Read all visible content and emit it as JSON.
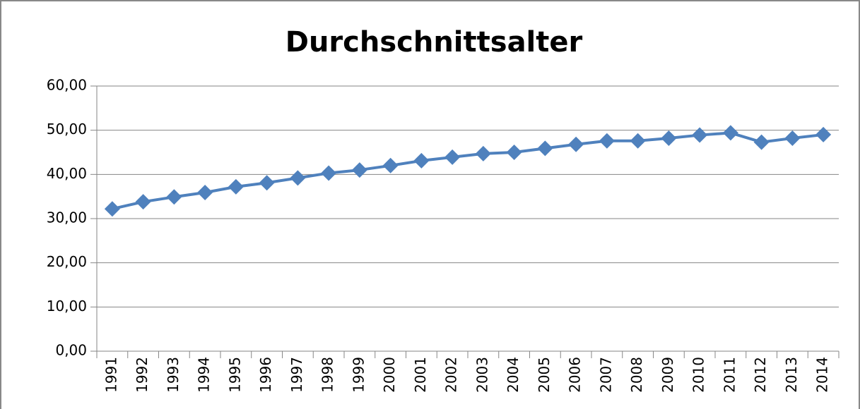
{
  "chart_data": {
    "type": "line",
    "title": "Durchschnittsalter",
    "categories": [
      "1991",
      "1992",
      "1993",
      "1994",
      "1995",
      "1996",
      "1997",
      "1998",
      "1999",
      "2000",
      "2001",
      "2002",
      "2003",
      "2004",
      "2005",
      "2006",
      "2007",
      "2008",
      "2009",
      "2010",
      "2011",
      "2012",
      "2013",
      "2014"
    ],
    "series": [
      {
        "name": "Durchschnittsalter",
        "color": "#4f81bd",
        "values": [
          32.2,
          33.8,
          34.9,
          35.9,
          37.2,
          38.1,
          39.2,
          40.3,
          41.0,
          42.0,
          43.1,
          43.9,
          44.7,
          45.0,
          45.9,
          46.8,
          47.6,
          47.6,
          48.2,
          48.9,
          49.4,
          47.3,
          48.2,
          49.0
        ]
      }
    ],
    "ylim": [
      0,
      60
    ],
    "yticks": [
      {
        "value": 0,
        "label": "0,00"
      },
      {
        "value": 10,
        "label": "10,00"
      },
      {
        "value": 20,
        "label": "20,00"
      },
      {
        "value": 30,
        "label": "30,00"
      },
      {
        "value": 40,
        "label": "40,00"
      },
      {
        "value": 50,
        "label": "50,00"
      },
      {
        "value": 60,
        "label": "60,00"
      }
    ],
    "grid": true
  }
}
